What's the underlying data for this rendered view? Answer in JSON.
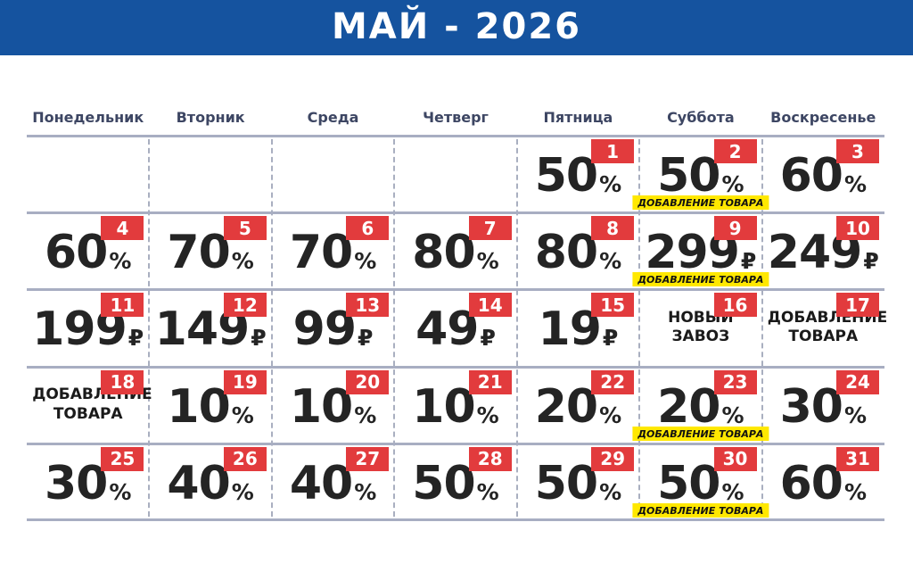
{
  "header": {
    "title": "МАЙ - 2026"
  },
  "weekdays": [
    "Понедельник",
    "Вторник",
    "Среда",
    "Четверг",
    "Пятница",
    "Суббота",
    "Воскресенье"
  ],
  "colors": {
    "banner_blue": "#15539F",
    "weekday_text": "#3D4663",
    "day_badge_red": "#E23B3D",
    "day_badge_text": "#FFFFFF",
    "highlight_yellow": "#FFE800",
    "value_black": "#242424",
    "row_line": "#A8AEC2",
    "column_dash": "#A9AFC0"
  },
  "weeks": [
    [
      null,
      null,
      null,
      null,
      {
        "day": "1",
        "value": "50",
        "unit": "%"
      },
      {
        "day": "2",
        "value": "50",
        "unit": "%",
        "note": "ДОБАВЛЕНИЕ ТОВАРА"
      },
      {
        "day": "3",
        "value": "60",
        "unit": "%"
      }
    ],
    [
      {
        "day": "4",
        "value": "60",
        "unit": "%"
      },
      {
        "day": "5",
        "value": "70",
        "unit": "%"
      },
      {
        "day": "6",
        "value": "70",
        "unit": "%"
      },
      {
        "day": "7",
        "value": "80",
        "unit": "%"
      },
      {
        "day": "8",
        "value": "80",
        "unit": "%"
      },
      {
        "day": "9",
        "value": "299",
        "unit": "₽",
        "note": "ДОБАВЛЕНИЕ ТОВАРА"
      },
      {
        "day": "10",
        "value": "249",
        "unit": "₽"
      }
    ],
    [
      {
        "day": "11",
        "value": "199",
        "unit": "₽"
      },
      {
        "day": "12",
        "value": "149",
        "unit": "₽"
      },
      {
        "day": "13",
        "value": "99",
        "unit": "₽"
      },
      {
        "day": "14",
        "value": "49",
        "unit": "₽"
      },
      {
        "day": "15",
        "value": "19",
        "unit": "₽"
      },
      {
        "day": "16",
        "text": "НОВЫЙ ЗАВОЗ"
      },
      {
        "day": "17",
        "text": "ДОБАВЛЕНИЕ ТОВАРА"
      }
    ],
    [
      {
        "day": "18",
        "text": "ДОБАВЛЕНИЕ ТОВАРА"
      },
      {
        "day": "19",
        "value": "10",
        "unit": "%"
      },
      {
        "day": "20",
        "value": "10",
        "unit": "%"
      },
      {
        "day": "21",
        "value": "10",
        "unit": "%"
      },
      {
        "day": "22",
        "value": "20",
        "unit": "%"
      },
      {
        "day": "23",
        "value": "20",
        "unit": "%",
        "note": "ДОБАВЛЕНИЕ ТОВАРА"
      },
      {
        "day": "24",
        "value": "30",
        "unit": "%"
      }
    ],
    [
      {
        "day": "25",
        "value": "30",
        "unit": "%"
      },
      {
        "day": "26",
        "value": "40",
        "unit": "%"
      },
      {
        "day": "27",
        "value": "40",
        "unit": "%"
      },
      {
        "day": "28",
        "value": "50",
        "unit": "%"
      },
      {
        "day": "29",
        "value": "50",
        "unit": "%"
      },
      {
        "day": "30",
        "value": "50",
        "unit": "%",
        "note": "ДОБАВЛЕНИЕ ТОВАРА"
      },
      {
        "day": "31",
        "value": "60",
        "unit": "%"
      }
    ]
  ]
}
